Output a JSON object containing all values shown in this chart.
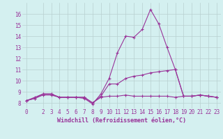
{
  "x": [
    0,
    1,
    2,
    3,
    4,
    5,
    6,
    7,
    8,
    9,
    10,
    11,
    12,
    13,
    14,
    15,
    16,
    17,
    18,
    19,
    20,
    21,
    22,
    23
  ],
  "line1": [
    8.2,
    8.5,
    8.8,
    8.8,
    8.5,
    8.5,
    8.5,
    8.4,
    7.9,
    8.8,
    10.2,
    12.5,
    14.0,
    13.9,
    14.6,
    16.4,
    15.1,
    13.0,
    11.0,
    8.6,
    8.6,
    8.7,
    8.6,
    8.5
  ],
  "line2": [
    8.2,
    8.4,
    8.8,
    8.8,
    8.5,
    8.5,
    8.5,
    8.5,
    8.0,
    8.6,
    9.7,
    9.7,
    10.2,
    10.4,
    10.5,
    10.7,
    10.8,
    10.9,
    11.0,
    8.6,
    8.6,
    8.7,
    8.6,
    8.5
  ],
  "line3": [
    8.2,
    8.4,
    8.7,
    8.7,
    8.5,
    8.5,
    8.5,
    8.5,
    8.0,
    8.5,
    8.6,
    8.6,
    8.7,
    8.6,
    8.6,
    8.6,
    8.6,
    8.6,
    8.5,
    8.6,
    8.6,
    8.7,
    8.6,
    8.5
  ],
  "color": "#993399",
  "bg_color": "#d4f0f0",
  "grid_color": "#b8d0d0",
  "xlabel": "Windchill (Refroidissement éolien,°C)",
  "ylim": [
    7.5,
    17.0
  ],
  "xlim": [
    -0.5,
    23.5
  ],
  "yticks": [
    8,
    9,
    10,
    11,
    12,
    13,
    14,
    15,
    16
  ],
  "xticks": [
    0,
    2,
    3,
    4,
    5,
    6,
    7,
    8,
    9,
    10,
    11,
    12,
    13,
    14,
    15,
    16,
    17,
    18,
    19,
    20,
    21,
    22,
    23
  ],
  "tick_fontsize": 5.5,
  "label_fontsize": 6.0,
  "line_width": 0.8,
  "marker_size": 3.0
}
